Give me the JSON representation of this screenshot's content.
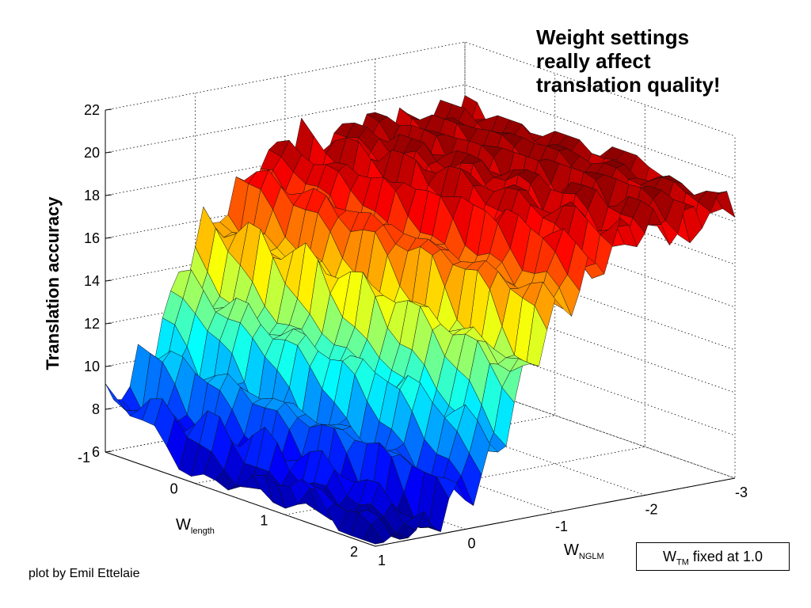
{
  "headline": [
    "Weight settings",
    "really affect",
    "translation quality!"
  ],
  "credit": "plot by Emil Ettelaie",
  "note": {
    "prefix": "W",
    "sub": "TM",
    "suffix": " fixed at 1.0"
  },
  "chart_data": {
    "type": "surface",
    "title": "",
    "zlabel": "Translation accuracy",
    "xlabel": {
      "main": "W",
      "sub": "NGLM"
    },
    "ylabel": {
      "main": "W",
      "sub": "length"
    },
    "x_ticks": [
      1,
      0,
      -1,
      -2,
      -3
    ],
    "y_ticks": [
      -1,
      0,
      1,
      2
    ],
    "z_ticks": [
      6,
      8,
      10,
      12,
      14,
      16,
      18,
      20,
      22
    ],
    "xlim": [
      1,
      -3
    ],
    "ylim": [
      -1,
      2
    ],
    "zlim": [
      6,
      22
    ],
    "grid": true,
    "colormap": "jet",
    "approx_surface": {
      "description_of_shape": "low plateau near W_NGLM=1, rises steeply through W_NGLM 0 to -1, high plateau ~18-19 for W_NGLM < -1",
      "low_value": 6.5,
      "high_value": 18.8,
      "peak_value": 19.5
    }
  }
}
